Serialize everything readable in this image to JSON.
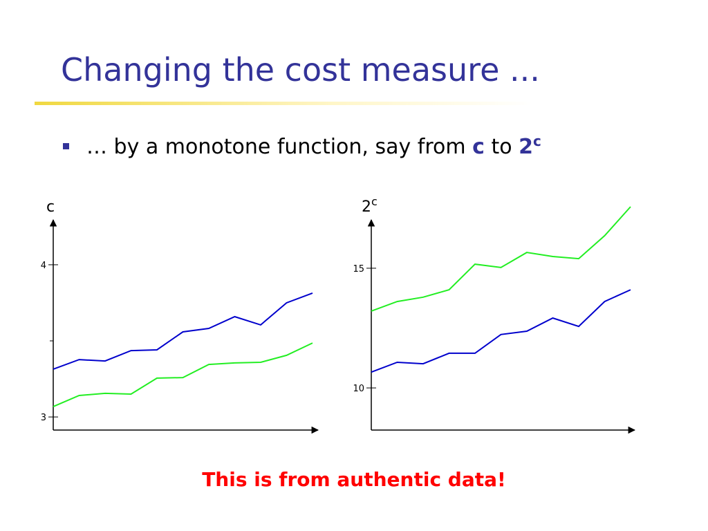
{
  "header": {
    "title": "Changing the cost measure ..."
  },
  "bullet": {
    "text": "… by a monotone function, say from ",
    "bold1": "c",
    "mid": " to ",
    "bold2": "2",
    "sup": "c"
  },
  "chart_data": [
    {
      "type": "line",
      "ylabel": "c",
      "ylim": [
        2.914,
        4.295
      ],
      "yticks": [
        3,
        4
      ],
      "minor_yticks": [
        3.5
      ],
      "series": [
        {
          "name": "blue",
          "color": "#0000cc",
          "values": [
            3.314,
            3.377,
            3.368,
            3.436,
            3.441,
            3.559,
            3.582,
            3.659,
            3.605,
            3.75,
            3.814
          ]
        },
        {
          "name": "green",
          "color": "#22ee22",
          "values": [
            3.068,
            3.141,
            3.155,
            3.15,
            3.255,
            3.259,
            3.345,
            3.355,
            3.359,
            3.405,
            3.486
          ]
        }
      ]
    },
    {
      "type": "line",
      "ylabel": "2",
      "ylabel_sup": "c",
      "ylim": [
        8.24,
        17.02
      ],
      "yticks": [
        10,
        15
      ],
      "series": [
        {
          "name": "green",
          "color": "#22ee22",
          "values": [
            13.21,
            13.61,
            13.79,
            14.1,
            15.17,
            15.03,
            15.66,
            15.49,
            15.4,
            16.36,
            17.57
          ]
        },
        {
          "name": "blue",
          "color": "#0000cc",
          "values": [
            10.66,
            11.07,
            11.01,
            11.45,
            11.45,
            12.23,
            12.37,
            12.92,
            12.57,
            13.61,
            14.1
          ]
        }
      ]
    }
  ],
  "footer": {
    "note": "This is from authentic data!"
  }
}
